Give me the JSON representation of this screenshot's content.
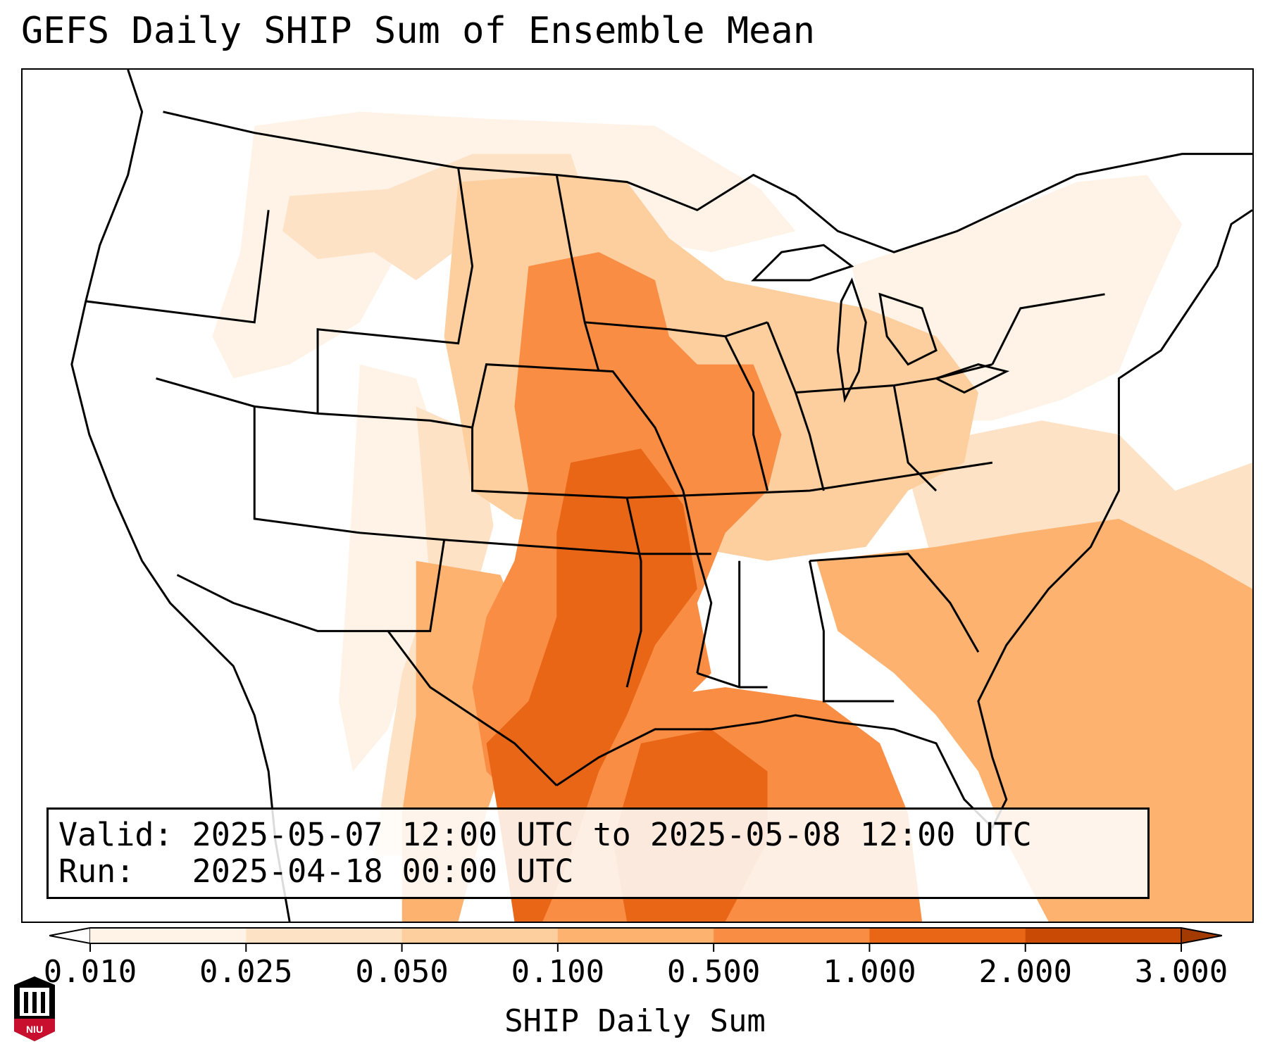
{
  "title": "GEFS Daily SHIP Sum of Ensemble Mean",
  "info": {
    "valid_label": "Valid:",
    "valid_value": "2025-05-07 12:00 UTC to 2025-05-08 12:00 UTC",
    "run_label": "Run:",
    "run_value": "2025-04-18 00:00 UTC"
  },
  "colorbar": {
    "label": "SHIP Daily Sum",
    "ticks": [
      "0.010",
      "0.025",
      "0.050",
      "0.100",
      "0.500",
      "1.000",
      "2.000",
      "3.000"
    ],
    "colors": [
      "#fff2e6",
      "#fee2c6",
      "#fdcf9e",
      "#fdb270",
      "#f98d44",
      "#ea6617",
      "#c84a04"
    ],
    "extend": "both"
  },
  "logo": {
    "text": "NIU",
    "color": "#c8102e"
  },
  "map": {
    "region": "Continental United States",
    "features": [
      "coastlines",
      "state-borders",
      "country-borders"
    ],
    "shading_description": "Highest values over Oklahoma, Texas and western Gulf of Mexico; moderate over central Plains and Midwest; low over Northwest and Northeast"
  }
}
